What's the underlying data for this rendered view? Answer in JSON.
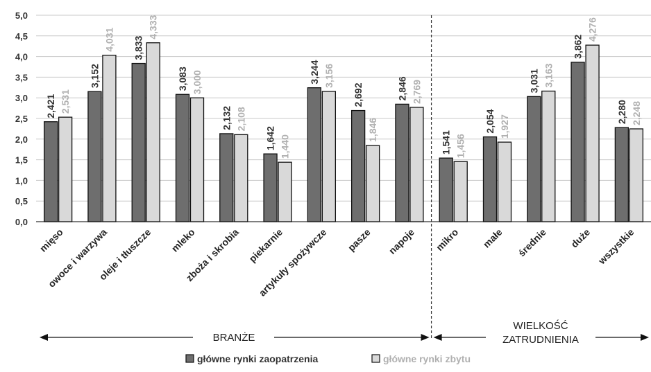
{
  "chart_data": {
    "type": "bar",
    "categories": [
      "mięso",
      "owoce i warzywa",
      "oleje i tłuszcze",
      "mleko",
      "zboża i skrobia",
      "piekarnie",
      "artykuły spożywcze",
      "pasze",
      "napoje",
      "mikro",
      "małe",
      "średnie",
      "duże",
      "wszystkie"
    ],
    "series": [
      {
        "name": "główne rynki zaopatrzenia",
        "color": "#6e6e6e",
        "values": [
          2.421,
          3.152,
          3.833,
          3.083,
          2.132,
          1.642,
          3.244,
          2.692,
          2.846,
          1.541,
          2.054,
          3.031,
          3.862,
          2.28
        ],
        "labels": [
          "2,421",
          "3,152",
          "3,833",
          "3,083",
          "2,132",
          "1,642",
          "3,244",
          "2,692",
          "2,846",
          "1,541",
          "2,054",
          "3,031",
          "3,862",
          "2,280"
        ]
      },
      {
        "name": "główne rynki zbytu",
        "color": "#d9d9d9",
        "values": [
          2.531,
          4.031,
          4.333,
          3.0,
          2.108,
          1.44,
          3.156,
          1.846,
          2.769,
          1.456,
          1.927,
          3.163,
          4.276,
          2.248
        ],
        "labels": [
          "2,531",
          "4,031",
          "4,333",
          "3,000",
          "2,108",
          "1,440",
          "3,156",
          "1,846",
          "2,769",
          "1,456",
          "1,927",
          "3,163",
          "4,276",
          "2,248"
        ]
      }
    ],
    "ylim": [
      0,
      5
    ],
    "yticks": [
      "0,0",
      "0,5",
      "1,0",
      "1,5",
      "2,0",
      "2,5",
      "3,0",
      "3,5",
      "4,0",
      "4,5",
      "5,0"
    ],
    "grid": true,
    "legend_position": "bottom",
    "groups": [
      {
        "label": "BRANŻE"
      },
      {
        "label_lines": [
          "WIELKOŚĆ",
          "ZATRUDNIENIA"
        ]
      }
    ]
  }
}
